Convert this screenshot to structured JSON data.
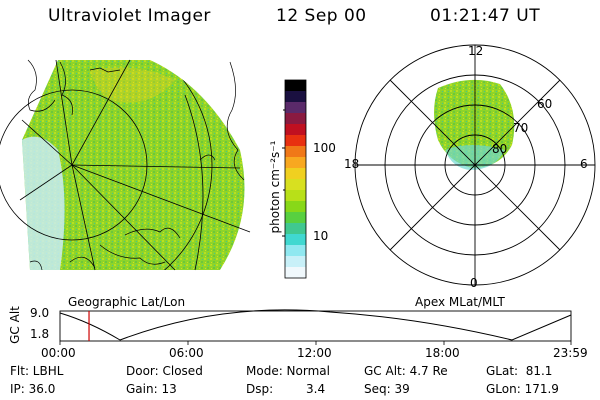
{
  "header": {
    "title": "Ultraviolet Imager",
    "date": "12 Sep 00",
    "time": "01:21:47 UT"
  },
  "geo_panel": {
    "caption": "Geographic Lat/Lon"
  },
  "polar_panel": {
    "caption": "Apex MLat/MLT",
    "mlt_labels": [
      "12",
      "18",
      "6",
      "0"
    ],
    "lat_labels": [
      "60",
      "70",
      "80"
    ]
  },
  "colorbar": {
    "unit_label": "photon cm⁻²s⁻¹",
    "ticks": [
      "100",
      "10"
    ],
    "colors": [
      "#000000",
      "#1a1040",
      "#5a2a6a",
      "#8a1a40",
      "#c01020",
      "#e83010",
      "#f07818",
      "#f8a820",
      "#f0d020",
      "#d8e020",
      "#b8e018",
      "#88d818",
      "#58d040",
      "#40c890",
      "#40d8d0",
      "#90e8f0",
      "#c8f0f8",
      "#f0f8fc"
    ]
  },
  "altitude_plot": {
    "ylabel": "GC Alt",
    "y_ticks": [
      "9.0",
      "1.8"
    ],
    "x_ticks": [
      "00:00",
      "06:00",
      "12:00",
      "18:00",
      "23:59"
    ],
    "cursor_hour": 1.363,
    "cursor_color": "#cc0000"
  },
  "info": {
    "filter": "Flt: LBHL",
    "ip": "IP: 36.0",
    "door": "Door: Closed",
    "gain": "Gain: 13",
    "mode": "Mode: Normal",
    "dsp_label": "Dsp:",
    "dsp_value": "3.4",
    "gc_alt": "GC Alt: 4.7 Re",
    "seq": "Seq: 39",
    "glat": "GLat:  81.1",
    "glon": "GLon: 171.9"
  }
}
